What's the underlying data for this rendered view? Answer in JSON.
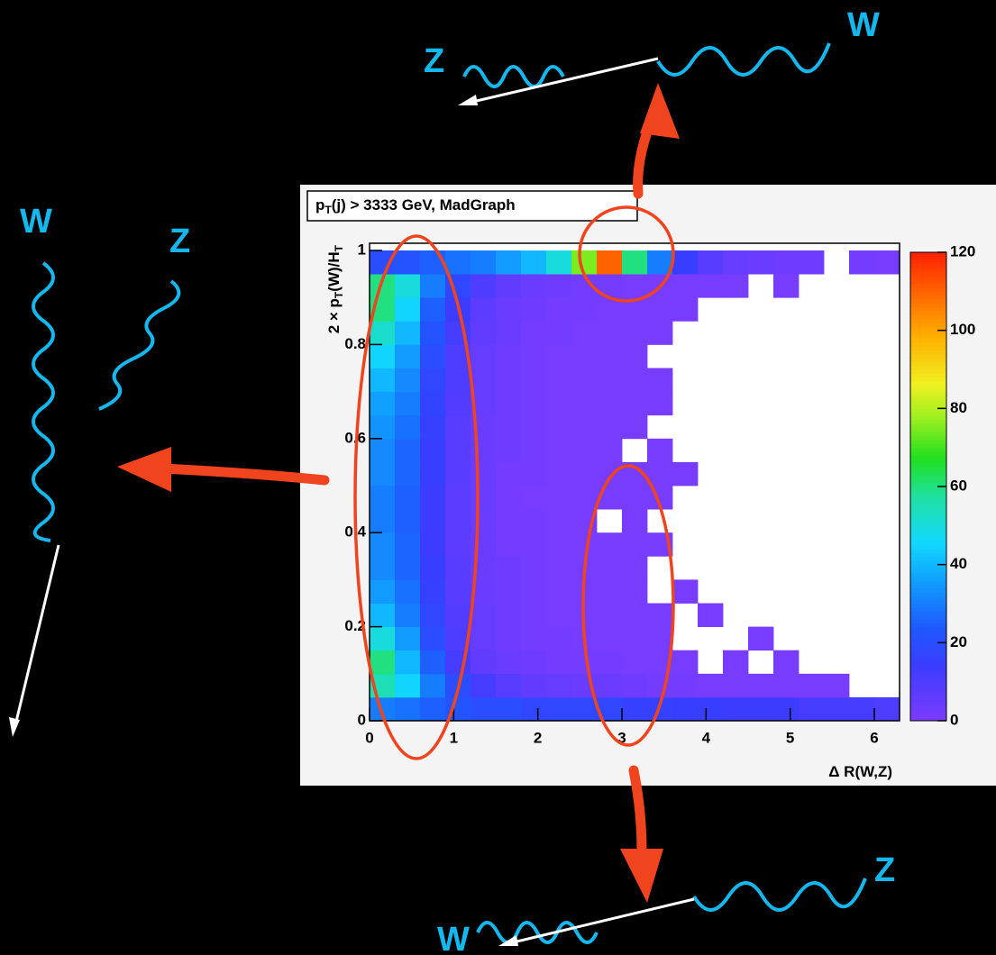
{
  "chart_data": {
    "type": "heatmap",
    "title": [
      {
        "text": "p"
      },
      {
        "text": "T",
        "sub": true
      },
      {
        "text": "(j) > 3333 GeV,  MadGraph"
      }
    ],
    "xlabel": [
      {
        "text": "Δ R(W,Z)"
      }
    ],
    "ylabel": [
      {
        "text": "2 × p"
      },
      {
        "text": "T",
        "sub": true
      },
      {
        "text": "(W)/H"
      },
      {
        "text": "T",
        "sub": true
      }
    ],
    "annotations": [
      "Z",
      "W",
      "W",
      "Z",
      "W",
      "Z"
    ],
    "xlim": [
      0,
      6.3
    ],
    "ylim": [
      0,
      1
    ],
    "xticks": [
      0,
      1,
      2,
      3,
      4,
      5,
      6
    ],
    "yticks": [
      0,
      0.2,
      0.4,
      0.6,
      0.8,
      1
    ],
    "zlim": [
      0,
      120
    ],
    "zticks": [
      0,
      20,
      40,
      60,
      80,
      100,
      120
    ],
    "xbins": [
      0,
      0.3,
      0.6,
      0.9,
      1.2,
      1.5,
      1.8,
      2.1,
      2.4,
      2.7,
      3.0,
      3.3,
      3.6,
      3.9,
      4.2,
      4.5,
      4.8,
      5.1,
      5.4,
      5.7,
      6.0,
      6.3
    ],
    "ybins": [
      0,
      0.05,
      0.1,
      0.15,
      0.2,
      0.25,
      0.3,
      0.35,
      0.4,
      0.45,
      0.5,
      0.55,
      0.6,
      0.65,
      0.7,
      0.75,
      0.8,
      0.85,
      0.9,
      0.95,
      1
    ],
    "z": [
      [
        30,
        28,
        25,
        22,
        20,
        20,
        18,
        18,
        18,
        18,
        16,
        16,
        15,
        15,
        14,
        14,
        14,
        12,
        12,
        12,
        10
      ],
      [
        55,
        45,
        30,
        20,
        12,
        8,
        6,
        5,
        4,
        4,
        3,
        2,
        2,
        1,
        1,
        1,
        1,
        1,
        1,
        0,
        0
      ],
      [
        60,
        40,
        25,
        12,
        6,
        4,
        3,
        2,
        2,
        2,
        1,
        1,
        1,
        0,
        1,
        0,
        1,
        0,
        0,
        0,
        0
      ],
      [
        50,
        35,
        20,
        10,
        5,
        3,
        2,
        2,
        1,
        1,
        1,
        1,
        0,
        0,
        0,
        1,
        0,
        0,
        0,
        0,
        0
      ],
      [
        40,
        30,
        18,
        9,
        5,
        3,
        2,
        1,
        1,
        1,
        1,
        1,
        0,
        1,
        0,
        0,
        0,
        0,
        0,
        0,
        0
      ],
      [
        35,
        28,
        16,
        8,
        4,
        3,
        2,
        1,
        1,
        1,
        1,
        0,
        1,
        0,
        0,
        0,
        0,
        0,
        0,
        0,
        0
      ],
      [
        32,
        26,
        15,
        8,
        4,
        3,
        2,
        1,
        1,
        1,
        1,
        0,
        0,
        0,
        0,
        0,
        0,
        0,
        0,
        0,
        0
      ],
      [
        32,
        26,
        14,
        7,
        4,
        2,
        2,
        1,
        1,
        1,
        1,
        1,
        0,
        0,
        0,
        0,
        0,
        0,
        0,
        0,
        0
      ],
      [
        30,
        25,
        14,
        7,
        4,
        2,
        2,
        1,
        1,
        0,
        1,
        0,
        0,
        0,
        0,
        0,
        0,
        0,
        0,
        0,
        0
      ],
      [
        30,
        25,
        14,
        7,
        4,
        2,
        1,
        1,
        1,
        1,
        1,
        1,
        0,
        0,
        0,
        0,
        0,
        0,
        0,
        0,
        0
      ],
      [
        32,
        26,
        15,
        8,
        4,
        2,
        2,
        1,
        1,
        1,
        1,
        1,
        1,
        0,
        0,
        0,
        0,
        0,
        0,
        0,
        0
      ],
      [
        32,
        26,
        15,
        8,
        4,
        3,
        2,
        1,
        1,
        1,
        0,
        1,
        0,
        0,
        0,
        0,
        0,
        0,
        0,
        0,
        0
      ],
      [
        34,
        28,
        16,
        8,
        4,
        3,
        2,
        1,
        1,
        1,
        1,
        0,
        0,
        0,
        0,
        0,
        0,
        0,
        0,
        0,
        0
      ],
      [
        36,
        30,
        17,
        9,
        5,
        3,
        2,
        1,
        1,
        1,
        1,
        1,
        0,
        0,
        0,
        0,
        0,
        0,
        0,
        0,
        0
      ],
      [
        40,
        32,
        18,
        10,
        5,
        3,
        2,
        1,
        1,
        1,
        1,
        1,
        0,
        0,
        0,
        0,
        0,
        0,
        0,
        0,
        0
      ],
      [
        45,
        35,
        20,
        10,
        5,
        3,
        2,
        1,
        1,
        1,
        1,
        0,
        0,
        0,
        0,
        0,
        0,
        0,
        0,
        0,
        0
      ],
      [
        52,
        40,
        22,
        12,
        6,
        4,
        2,
        2,
        1,
        1,
        1,
        1,
        0,
        0,
        0,
        0,
        0,
        0,
        0,
        0,
        0
      ],
      [
        60,
        45,
        25,
        14,
        7,
        4,
        3,
        2,
        2,
        1,
        1,
        1,
        1,
        0,
        0,
        0,
        0,
        0,
        0,
        0,
        0
      ],
      [
        60,
        50,
        30,
        18,
        10,
        6,
        4,
        3,
        2,
        2,
        1,
        1,
        1,
        1,
        1,
        0,
        1,
        0,
        0,
        0,
        0
      ],
      [
        20,
        22,
        25,
        28,
        30,
        35,
        40,
        50,
        75,
        110,
        60,
        30,
        15,
        8,
        5,
        4,
        3,
        3,
        0,
        2,
        1
      ]
    ]
  }
}
